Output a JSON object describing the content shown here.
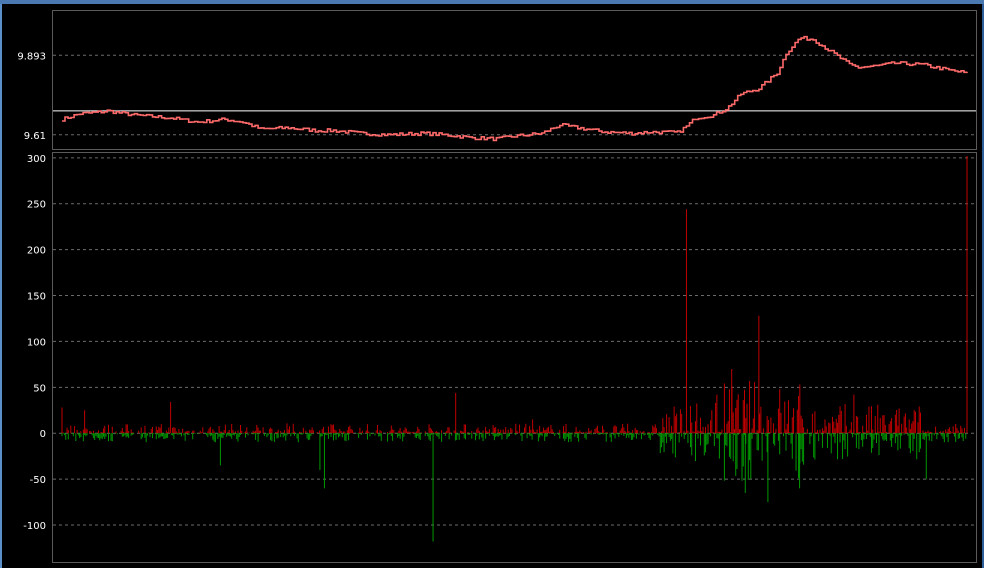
{
  "chart_data": [
    {
      "type": "line",
      "name": "price-panel",
      "yticks": [
        9.61,
        9.893
      ],
      "ytick_labels": [
        "9.61",
        "9.893"
      ],
      "ylim": [
        9.57,
        10.04
      ],
      "reference_line": 9.695,
      "grid": true,
      "colors": {
        "line": "#ff6a6a",
        "grid": "#6b6b6b",
        "reference": "#ffffff",
        "text": "#ffffff"
      },
      "series_x": [
        0,
        0.02,
        0.04,
        0.05,
        0.08,
        0.1,
        0.12,
        0.15,
        0.18,
        0.2,
        0.22,
        0.25,
        0.28,
        0.3,
        0.33,
        0.36,
        0.4,
        0.43,
        0.45,
        0.48,
        0.5,
        0.53,
        0.55,
        0.58,
        0.6,
        0.63,
        0.65,
        0.68,
        0.69,
        0.7,
        0.72,
        0.735,
        0.75,
        0.77,
        0.79,
        0.8,
        0.815,
        0.83,
        0.85,
        0.87,
        0.88,
        0.9,
        0.92,
        0.95,
        0.98,
        1.0
      ],
      "series_y": [
        9.665,
        9.685,
        9.69,
        9.695,
        9.68,
        9.675,
        9.67,
        9.655,
        9.665,
        9.655,
        9.63,
        9.635,
        9.625,
        9.625,
        9.615,
        9.61,
        9.615,
        9.608,
        9.6,
        9.595,
        9.605,
        9.615,
        9.645,
        9.63,
        9.62,
        9.615,
        9.62,
        9.618,
        9.64,
        9.67,
        9.68,
        9.705,
        9.755,
        9.775,
        9.83,
        9.9,
        9.955,
        9.95,
        9.905,
        9.86,
        9.85,
        9.855,
        9.865,
        9.86,
        9.84,
        9.83
      ]
    },
    {
      "type": "bar",
      "name": "volume-panel",
      "yticks": [
        -100,
        -50,
        0,
        50,
        100,
        150,
        200,
        250,
        300
      ],
      "ytick_labels": [
        "-100",
        "-50",
        "0",
        "50",
        "100",
        "150",
        "200",
        "250",
        "300"
      ],
      "ylim": [
        -137,
        302
      ],
      "grid": true,
      "colors": {
        "positive": "#c00000",
        "negative": "#009900",
        "grid": "#6b6b6b",
        "text": "#ffffff"
      },
      "spikes": [
        {
          "x": 0.0,
          "v": 28
        },
        {
          "x": 0.025,
          "v": 25
        },
        {
          "x": 0.12,
          "v": 34
        },
        {
          "x": 0.175,
          "v": -35
        },
        {
          "x": 0.285,
          "v": -40
        },
        {
          "x": 0.29,
          "v": -60
        },
        {
          "x": 0.41,
          "v": -118
        },
        {
          "x": 0.435,
          "v": 44
        },
        {
          "x": 0.52,
          "v": 15
        },
        {
          "x": 0.69,
          "v": 244
        },
        {
          "x": 0.74,
          "v": 70
        },
        {
          "x": 0.755,
          "v": -65
        },
        {
          "x": 0.77,
          "v": 128
        },
        {
          "x": 0.78,
          "v": -75
        },
        {
          "x": 0.815,
          "v": -60
        },
        {
          "x": 0.875,
          "v": 42
        },
        {
          "x": 0.955,
          "v": -50
        },
        {
          "x": 1.0,
          "v": 302
        }
      ]
    }
  ]
}
